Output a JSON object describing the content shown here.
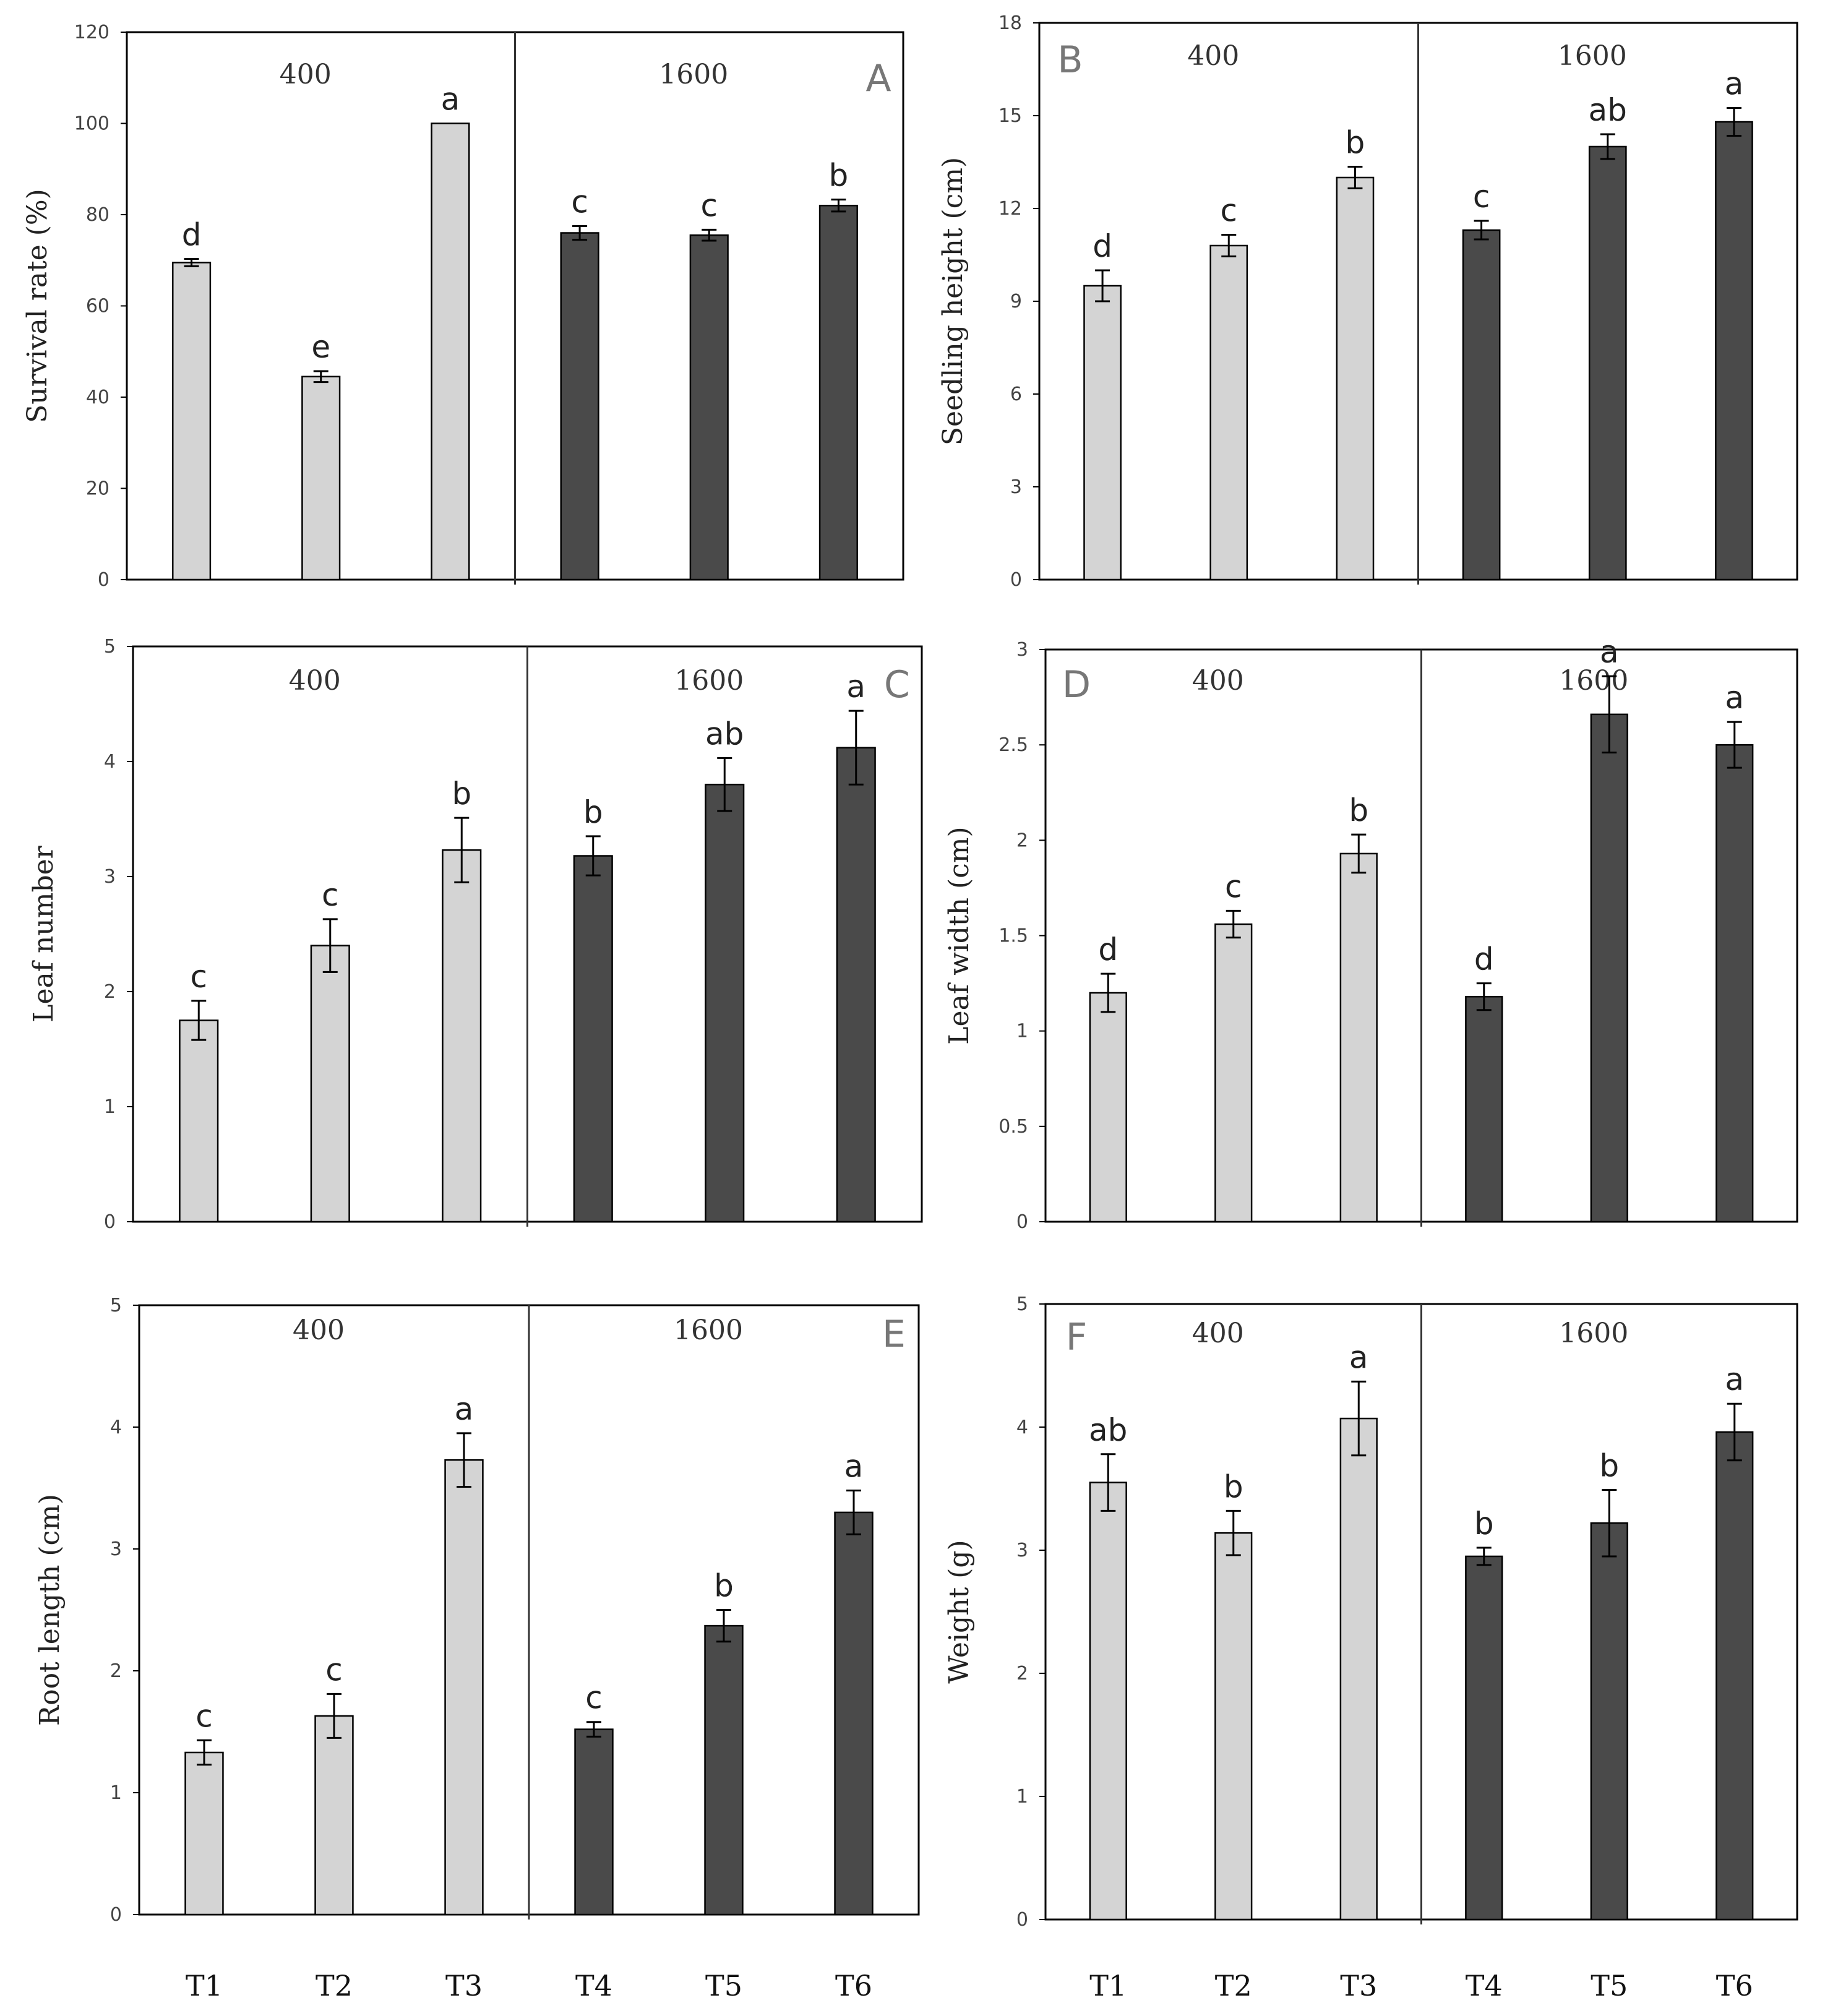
{
  "chart_data": [
    {
      "type": "bar",
      "panel": "A",
      "categories": [
        "T1",
        "T2",
        "T3",
        "T4",
        "T5",
        "T6"
      ],
      "groups": [
        {
          "label": "400",
          "members": [
            "T1",
            "T2",
            "T3"
          ],
          "color": "#d4d4d4"
        },
        {
          "label": "1600",
          "members": [
            "T4",
            "T5",
            "T6"
          ],
          "color": "#4a4a4a"
        }
      ],
      "values": [
        69.5,
        44.5,
        100,
        76,
        75.5,
        82
      ],
      "errors": [
        0.8,
        1.2,
        0,
        1.5,
        1.2,
        1.3
      ],
      "letters": [
        "d",
        "e",
        "a",
        "c",
        "c",
        "b"
      ],
      "ylabel": "Survival rate (%)",
      "yticks": [
        0,
        20,
        40,
        60,
        80,
        100,
        120
      ],
      "ylim": [
        0,
        120
      ]
    },
    {
      "type": "bar",
      "panel": "B",
      "categories": [
        "T1",
        "T2",
        "T3",
        "T4",
        "T5",
        "T6"
      ],
      "groups": [
        {
          "label": "400",
          "members": [
            "T1",
            "T2",
            "T3"
          ],
          "color": "#d4d4d4"
        },
        {
          "label": "1600",
          "members": [
            "T4",
            "T5",
            "T6"
          ],
          "color": "#4a4a4a"
        }
      ],
      "values": [
        9.5,
        10.8,
        13.0,
        11.3,
        14.0,
        14.8
      ],
      "errors": [
        0.5,
        0.35,
        0.35,
        0.3,
        0.4,
        0.45
      ],
      "letters": [
        "d",
        "c",
        "b",
        "c",
        "ab",
        "a"
      ],
      "ylabel": "Seedling height  (cm)",
      "yticks": [
        0,
        3,
        6,
        9,
        12,
        15,
        18
      ],
      "ylim": [
        0,
        18
      ]
    },
    {
      "type": "bar",
      "panel": "C",
      "categories": [
        "T1",
        "T2",
        "T3",
        "T4",
        "T5",
        "T6"
      ],
      "groups": [
        {
          "label": "400",
          "members": [
            "T1",
            "T2",
            "T3"
          ],
          "color": "#d4d4d4"
        },
        {
          "label": "1600",
          "members": [
            "T4",
            "T5",
            "T6"
          ],
          "color": "#4a4a4a"
        }
      ],
      "values": [
        1.75,
        2.4,
        3.23,
        3.18,
        3.8,
        4.12
      ],
      "errors": [
        0.17,
        0.23,
        0.28,
        0.17,
        0.23,
        0.32
      ],
      "letters": [
        "c",
        "c",
        "b",
        "b",
        "ab",
        "a"
      ],
      "ylabel": "Leaf number",
      "yticks": [
        0,
        1,
        2,
        3,
        4,
        5
      ],
      "ylim": [
        0,
        5
      ]
    },
    {
      "type": "bar",
      "panel": "D",
      "categories": [
        "T1",
        "T2",
        "T3",
        "T4",
        "T5",
        "T6"
      ],
      "groups": [
        {
          "label": "400",
          "members": [
            "T1",
            "T2",
            "T3"
          ],
          "color": "#d4d4d4"
        },
        {
          "label": "1600",
          "members": [
            "T4",
            "T5",
            "T6"
          ],
          "color": "#4a4a4a"
        }
      ],
      "values": [
        1.2,
        1.56,
        1.93,
        1.18,
        2.66,
        2.5
      ],
      "errors": [
        0.1,
        0.07,
        0.1,
        0.07,
        0.2,
        0.12
      ],
      "letters": [
        "d",
        "c",
        "b",
        "d",
        "a",
        "a"
      ],
      "ylabel": "Leaf width (cm)",
      "yticks": [
        0,
        0.5,
        1,
        1.5,
        2,
        2.5,
        3
      ],
      "ylim": [
        0,
        3
      ]
    },
    {
      "type": "bar",
      "panel": "E",
      "categories": [
        "T1",
        "T2",
        "T3",
        "T4",
        "T5",
        "T6"
      ],
      "groups": [
        {
          "label": "400",
          "members": [
            "T1",
            "T2",
            "T3"
          ],
          "color": "#d4d4d4"
        },
        {
          "label": "1600",
          "members": [
            "T4",
            "T5",
            "T6"
          ],
          "color": "#4a4a4a"
        }
      ],
      "values": [
        1.33,
        1.63,
        3.73,
        1.52,
        2.37,
        3.3
      ],
      "errors": [
        0.1,
        0.18,
        0.22,
        0.06,
        0.13,
        0.18
      ],
      "letters": [
        "c",
        "c",
        "a",
        "c",
        "b",
        "a"
      ],
      "ylabel": "Root length (cm)",
      "yticks": [
        0,
        1,
        2,
        3,
        4,
        5
      ],
      "ylim": [
        0,
        5
      ]
    },
    {
      "type": "bar",
      "panel": "F",
      "categories": [
        "T1",
        "T2",
        "T3",
        "T4",
        "T5",
        "T6"
      ],
      "groups": [
        {
          "label": "400",
          "members": [
            "T1",
            "T2",
            "T3"
          ],
          "color": "#d4d4d4"
        },
        {
          "label": "1600",
          "members": [
            "T4",
            "T5",
            "T6"
          ],
          "color": "#4a4a4a"
        }
      ],
      "values": [
        3.55,
        3.14,
        4.07,
        2.95,
        3.22,
        3.96
      ],
      "errors": [
        0.23,
        0.18,
        0.3,
        0.07,
        0.27,
        0.23
      ],
      "letters": [
        "ab",
        "b",
        "a",
        "b",
        "b",
        "a"
      ],
      "ylabel": "Weight (g)",
      "yticks": [
        0,
        1,
        2,
        3,
        4,
        5
      ],
      "ylim": [
        0,
        5
      ]
    }
  ]
}
